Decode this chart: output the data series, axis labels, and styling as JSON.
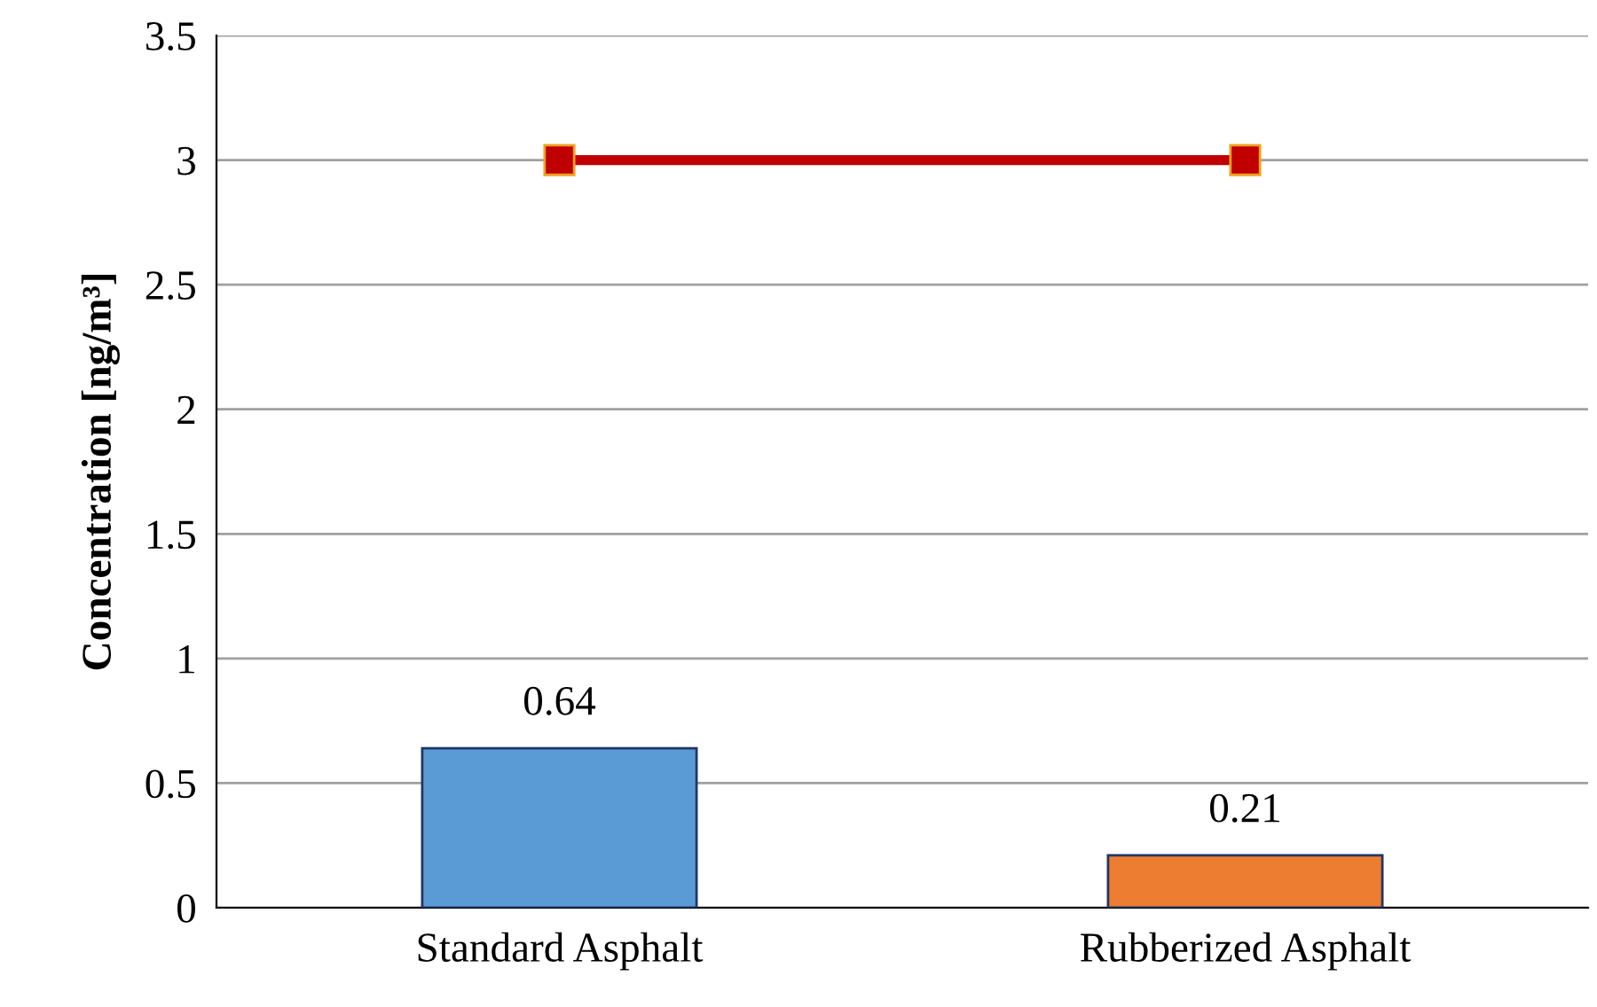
{
  "chart_data": {
    "type": "bar",
    "ylabel": "Concentration [ng/m³]",
    "categories": [
      "Standard Asphalt",
      "Rubberized Asphalt"
    ],
    "series": [
      {
        "colors": [
          "#5b9bd5",
          "#ed7d31"
        ],
        "values": [
          0.64,
          0.21
        ],
        "value_labels": [
          "0.64",
          "0.21"
        ]
      },
      {
        "type": "line",
        "color": "#c00000",
        "values": [
          3,
          3
        ],
        "marker": "square"
      }
    ],
    "ylim": [
      0,
      3.5
    ],
    "yticks": [
      0,
      0.5,
      1,
      1.5,
      2,
      2.5,
      3,
      3.5
    ],
    "grid": "y"
  }
}
